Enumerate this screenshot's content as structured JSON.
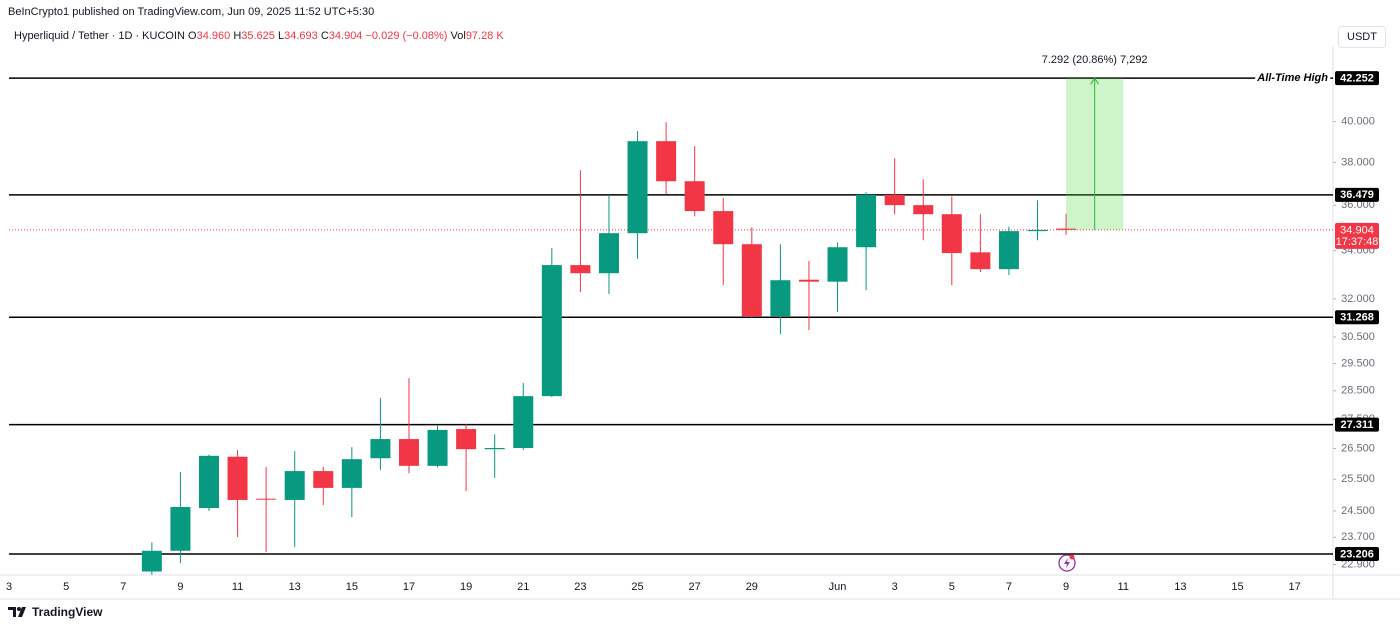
{
  "header": {
    "published": "BeInCrypto1 published on TradingView.com, Jun 09, 2025 11:52 UTC+5:30",
    "symbol": "Hyperliquid / Tether · 1D · KUCOIN",
    "ohlc": [
      {
        "key": "O",
        "value": "34.960"
      },
      {
        "key": "H",
        "value": "35.625"
      },
      {
        "key": "L",
        "value": "34.693"
      },
      {
        "key": "C",
        "value": "34.904"
      }
    ],
    "change": "−0.029 (−0.08%)",
    "volume_key": "Vol",
    "volume": "97.28 K",
    "currency": "USDT"
  },
  "footer": {
    "brand": "TradingView"
  },
  "chart_data": {
    "type": "candlestick",
    "categories": [
      "3",
      null,
      "5",
      null,
      "7",
      null,
      "9",
      null,
      "11",
      null,
      "13",
      null,
      "15",
      null,
      "17",
      null,
      "19",
      null,
      "21",
      null,
      "23",
      null,
      "25",
      null,
      "27",
      null,
      "29",
      null,
      null,
      "Jun",
      null,
      "3",
      null,
      "5",
      null,
      "7",
      null,
      "9",
      null,
      "11",
      null,
      "13",
      null,
      "15",
      null,
      "17"
    ],
    "open": [
      null,
      null,
      null,
      null,
      null,
      22.7,
      23.3,
      24.59,
      26.23,
      24.88,
      24.84,
      25.76,
      25.22,
      26.18,
      26.82,
      25.93,
      27.16,
      26.48,
      26.52,
      28.31,
      33.39,
      33.05,
      34.76,
      39.03,
      37.11,
      35.74,
      34.28,
      31.31,
      32.78,
      32.7,
      34.15,
      36.48,
      36.01,
      35.6,
      33.93,
      33.22,
      34.85,
      34.96,
      null,
      null,
      null,
      null,
      null,
      null,
      null,
      null
    ],
    "high": [
      null,
      null,
      null,
      null,
      null,
      23.55,
      25.73,
      26.3,
      26.45,
      25.89,
      26.42,
      25.9,
      26.55,
      28.24,
      28.96,
      27.3,
      27.33,
      26.98,
      28.78,
      34.11,
      37.63,
      36.48,
      39.53,
      39.97,
      38.79,
      36.33,
      35.02,
      34.28,
      33.56,
      34.36,
      36.6,
      38.2,
      37.2,
      36.4,
      35.6,
      35.05,
      36.23,
      35.625,
      null,
      null,
      null,
      null,
      null,
      null,
      null,
      null
    ],
    "low": [
      null,
      null,
      null,
      null,
      null,
      22.5,
      22.94,
      24.5,
      23.71,
      23.26,
      23.41,
      24.68,
      24.31,
      25.79,
      25.69,
      25.88,
      25.12,
      25.54,
      26.45,
      28.28,
      32.27,
      32.2,
      33.65,
      36.5,
      35.5,
      32.56,
      31.25,
      30.61,
      30.77,
      31.47,
      32.35,
      35.6,
      34.45,
      32.56,
      33.1,
      32.97,
      34.45,
      34.693,
      null,
      null,
      null,
      null,
      null,
      null,
      null,
      null
    ],
    "close": [
      null,
      null,
      null,
      null,
      null,
      23.3,
      24.62,
      26.26,
      24.84,
      24.85,
      25.76,
      25.22,
      26.15,
      26.82,
      25.93,
      27.13,
      26.48,
      26.52,
      28.31,
      33.39,
      33.05,
      34.76,
      39.03,
      37.11,
      35.74,
      34.28,
      31.31,
      32.76,
      32.7,
      34.15,
      36.48,
      36.01,
      35.6,
      33.9,
      33.22,
      34.85,
      34.9,
      34.904,
      null,
      null,
      null,
      null,
      null,
      null,
      null,
      null
    ],
    "up_color": "#089981",
    "down_color": "#f23645",
    "log_scale": true,
    "grid": false,
    "ylim": [
      22.6,
      44
    ],
    "yticks": [
      {
        "value": 22.9,
        "label": "22.900"
      },
      {
        "value": 23.7,
        "label": "23.700"
      },
      {
        "value": 24.5,
        "label": "24.500"
      },
      {
        "value": 25.5,
        "label": "25.500"
      },
      {
        "value": 26.5,
        "label": "26.500"
      },
      {
        "value": 27.5,
        "label": "27.500"
      },
      {
        "value": 28.5,
        "label": "28.500"
      },
      {
        "value": 29.5,
        "label": "29.500"
      },
      {
        "value": 30.5,
        "label": "30.500"
      },
      {
        "value": 32,
        "label": "32.000"
      },
      {
        "value": 34,
        "label": "34.000"
      },
      {
        "value": 36,
        "label": "36.000"
      },
      {
        "value": 38,
        "label": "38.000"
      },
      {
        "value": 40,
        "label": "40.000"
      }
    ],
    "levels": [
      42.252,
      36.479,
      31.268,
      27.311,
      23.206
    ],
    "level_note": "All-Time High",
    "last_price": 34.904,
    "countdown": "17:37:48",
    "measure_text": "7.292 (20.86%) 7,292"
  }
}
